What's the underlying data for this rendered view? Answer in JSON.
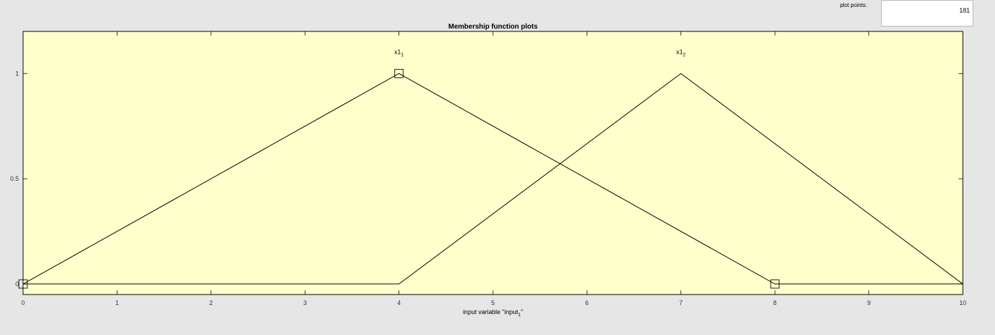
{
  "plot_points": {
    "label": "plot points:",
    "value": "181"
  },
  "chart_data": {
    "type": "line",
    "title": "Membership function plots",
    "xlabel": "input variable \"input",
    "xlabel_subscript": "1",
    "xlabel_suffix": "\"",
    "ylabel": "",
    "xlim": [
      0,
      10
    ],
    "ylim": [
      -0.05,
      1.2
    ],
    "xticks": [
      0,
      1,
      2,
      3,
      4,
      5,
      6,
      7,
      8,
      9,
      10
    ],
    "yticks": [
      0,
      0.5,
      1
    ],
    "ytick_labels": [
      "0",
      "0.5",
      "1"
    ],
    "grid": false,
    "background_color": "#ffffcc",
    "line_color": "#000000",
    "series": [
      {
        "label_main": "x1",
        "label_sub": "1",
        "x": [
          0,
          4,
          8,
          10
        ],
        "y": [
          0,
          1,
          0,
          0
        ],
        "selected": true
      },
      {
        "label_main": "x1",
        "label_sub": "2",
        "x": [
          0,
          4,
          7,
          10
        ],
        "y": [
          0,
          0,
          1,
          0
        ],
        "selected": false
      }
    ]
  }
}
